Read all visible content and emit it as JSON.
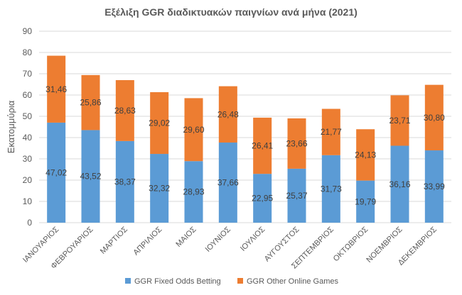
{
  "chart_data": {
    "type": "bar",
    "stacked": true,
    "title": "Εξέλιξη GGR διαδικτυακών παιγνίων ανά μήνα (2021)",
    "ylabel": "Εκατομμύρια",
    "xlabel": "",
    "ylim": [
      0,
      90
    ],
    "yticks": [
      0,
      10,
      20,
      30,
      40,
      50,
      60,
      70,
      80,
      90
    ],
    "grid": true,
    "legend_position": "bottom",
    "categories": [
      "ΙΑΝΟΥΑΡΙΟΣ",
      "ΦΕΒΡΟΥΑΡΙΟΣ",
      "ΜΑΡΤΙΟΣ",
      "ΑΠΡΙΛΙΟΣ",
      "ΜΑΙΟΣ",
      "ΙΟΥΝΙΟΣ",
      "ΙΟΥΛΙΟΣ",
      "ΑΥΓΟΥΣΤΟΣ",
      "ΣΕΠΤΕΜΒΡΙΟΣ",
      "ΟΚΤΩΒΡΙΟΣ",
      "ΝΟΕΜΒΡΙΟΣ",
      "ΔΕΚΕΜΒΡΙΟΣ"
    ],
    "series": [
      {
        "name": "GGR Fixed Odds Betting",
        "color": "#5b9bd5",
        "values": [
          47.02,
          43.52,
          38.37,
          32.32,
          28.93,
          37.66,
          22.95,
          25.37,
          31.73,
          19.79,
          36.16,
          33.99
        ],
        "labels": [
          "47,02",
          "43,52",
          "38,37",
          "32,32",
          "28,93",
          "37,66",
          "22,95",
          "25,37",
          "31,73",
          "19,79",
          "36,16",
          "33,99"
        ]
      },
      {
        "name": "GGR Other Online Games",
        "color": "#ed7d31",
        "values": [
          31.46,
          25.86,
          28.63,
          29.02,
          29.6,
          26.48,
          26.41,
          23.66,
          21.77,
          24.13,
          23.71,
          30.8
        ],
        "labels": [
          "31,46",
          "25,86",
          "28,63",
          "29,02",
          "29,60",
          "26,48",
          "26,41",
          "23,66",
          "21,77",
          "24,13",
          "23,71",
          "30,80"
        ]
      }
    ]
  }
}
